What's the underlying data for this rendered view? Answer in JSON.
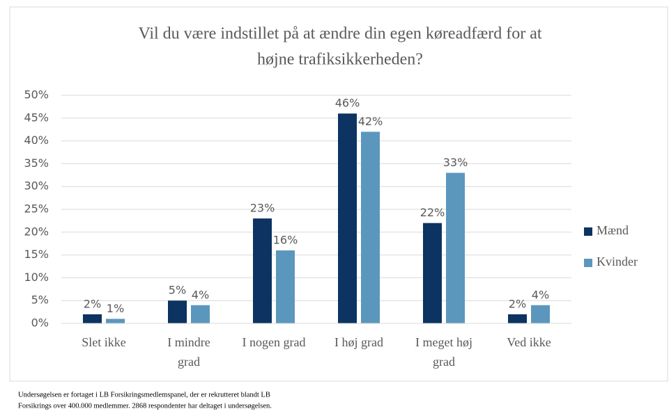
{
  "chart_data": {
    "type": "bar",
    "title": [
      "Vil du være indstillet på at ændre din egen køreadfærd for at",
      "højne trafiksikkerheden?"
    ],
    "categories": [
      [
        "Slet ikke"
      ],
      [
        "I mindre",
        "grad"
      ],
      [
        "I nogen grad"
      ],
      [
        "I høj grad"
      ],
      [
        "I meget høj",
        "grad"
      ],
      [
        "Ved ikke"
      ]
    ],
    "series": [
      {
        "name": "Mænd",
        "color": "#0c3361",
        "values": [
          2,
          5,
          23,
          46,
          22,
          2
        ],
        "value_labels": [
          "2%",
          "5%",
          "23%",
          "46%",
          "22%",
          "2%"
        ]
      },
      {
        "name": "Kvinder",
        "color": "#5b97bd",
        "values": [
          1,
          4,
          16,
          42,
          33,
          4
        ],
        "value_labels": [
          "1%",
          "4%",
          "16%",
          "42%",
          "33%",
          "4%"
        ]
      }
    ],
    "ylim": [
      0,
      50
    ],
    "yticks": [
      {
        "value": 0,
        "label": "0%"
      },
      {
        "value": 5,
        "label": "5%"
      },
      {
        "value": 10,
        "label": "10%"
      },
      {
        "value": 15,
        "label": "15%"
      },
      {
        "value": 20,
        "label": "20%"
      },
      {
        "value": 25,
        "label": "25%"
      },
      {
        "value": 30,
        "label": "30%"
      },
      {
        "value": 35,
        "label": "35%"
      },
      {
        "value": 40,
        "label": "40%"
      },
      {
        "value": 45,
        "label": "45%"
      },
      {
        "value": 50,
        "label": "50%"
      }
    ],
    "grid": true,
    "legend": "right",
    "footnote": [
      "Undersøgelsen er fortaget i LB Forsikringsmedlemspanel,  der er rekrutteret blandt LB",
      "Forsikrings over 400.000 medlemmer.  2868 respondenter har deltaget i undersøgelsen."
    ]
  }
}
